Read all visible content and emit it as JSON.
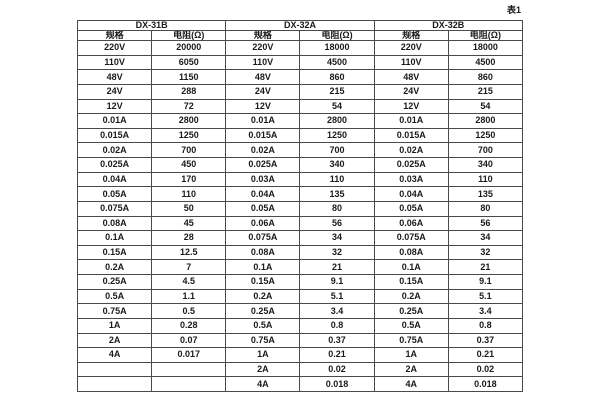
{
  "caption": "表1",
  "colors": {
    "background": "#ffffff",
    "border": "#4a4a4a",
    "text": "#1a1a1a"
  },
  "table": {
    "groups": [
      {
        "name": "DX-31B",
        "headers": [
          "规格",
          "电阻(Ω)"
        ],
        "rows": [
          [
            "220V",
            "20000"
          ],
          [
            "110V",
            "6050"
          ],
          [
            "48V",
            "1150"
          ],
          [
            "24V",
            "288"
          ],
          [
            "12V",
            "72"
          ],
          [
            "0.01A",
            "2800"
          ],
          [
            "0.015A",
            "1250"
          ],
          [
            "0.02A",
            "700"
          ],
          [
            "0.025A",
            "450"
          ],
          [
            "0.04A",
            "170"
          ],
          [
            "0.05A",
            "110"
          ],
          [
            "0.075A",
            "50"
          ],
          [
            "0.08A",
            "45"
          ],
          [
            "0.1A",
            "28"
          ],
          [
            "0.15A",
            "12.5"
          ],
          [
            "0.2A",
            "7"
          ],
          [
            "0.25A",
            "4.5"
          ],
          [
            "0.5A",
            "1.1"
          ],
          [
            "0.75A",
            "0.5"
          ],
          [
            "1A",
            "0.28"
          ],
          [
            "2A",
            "0.07"
          ],
          [
            "4A",
            "0.017"
          ],
          [
            "",
            ""
          ],
          [
            "",
            ""
          ]
        ]
      },
      {
        "name": "DX-32A",
        "headers": [
          "规格",
          "电阻(Ω)"
        ],
        "rows": [
          [
            "220V",
            "18000"
          ],
          [
            "110V",
            "4500"
          ],
          [
            "48V",
            "860"
          ],
          [
            "24V",
            "215"
          ],
          [
            "12V",
            "54"
          ],
          [
            "0.01A",
            "2800"
          ],
          [
            "0.015A",
            "1250"
          ],
          [
            "0.02A",
            "700"
          ],
          [
            "0.025A",
            "340"
          ],
          [
            "0.03A",
            "110"
          ],
          [
            "0.04A",
            "135"
          ],
          [
            "0.05A",
            "80"
          ],
          [
            "0.06A",
            "56"
          ],
          [
            "0.075A",
            "34"
          ],
          [
            "0.08A",
            "32"
          ],
          [
            "0.1A",
            "21"
          ],
          [
            "0.15A",
            "9.1"
          ],
          [
            "0.2A",
            "5.1"
          ],
          [
            "0.25A",
            "3.4"
          ],
          [
            "0.5A",
            "0.8"
          ],
          [
            "0.75A",
            "0.37"
          ],
          [
            "1A",
            "0.21"
          ],
          [
            "2A",
            "0.02"
          ],
          [
            "4A",
            "0.018"
          ]
        ]
      },
      {
        "name": "DX-32B",
        "headers": [
          "规格",
          "电阻(Ω)"
        ],
        "rows": [
          [
            "220V",
            "18000"
          ],
          [
            "110V",
            "4500"
          ],
          [
            "48V",
            "860"
          ],
          [
            "24V",
            "215"
          ],
          [
            "12V",
            "54"
          ],
          [
            "0.01A",
            "2800"
          ],
          [
            "0.015A",
            "1250"
          ],
          [
            "0.02A",
            "700"
          ],
          [
            "0.025A",
            "340"
          ],
          [
            "0.03A",
            "110"
          ],
          [
            "0.04A",
            "135"
          ],
          [
            "0.05A",
            "80"
          ],
          [
            "0.06A",
            "56"
          ],
          [
            "0.075A",
            "34"
          ],
          [
            "0.08A",
            "32"
          ],
          [
            "0.1A",
            "21"
          ],
          [
            "0.15A",
            "9.1"
          ],
          [
            "0.2A",
            "5.1"
          ],
          [
            "0.25A",
            "3.4"
          ],
          [
            "0.5A",
            "0.8"
          ],
          [
            "0.75A",
            "0.37"
          ],
          [
            "1A",
            "0.21"
          ],
          [
            "2A",
            "0.02"
          ],
          [
            "4A",
            "0.018"
          ]
        ]
      }
    ]
  }
}
